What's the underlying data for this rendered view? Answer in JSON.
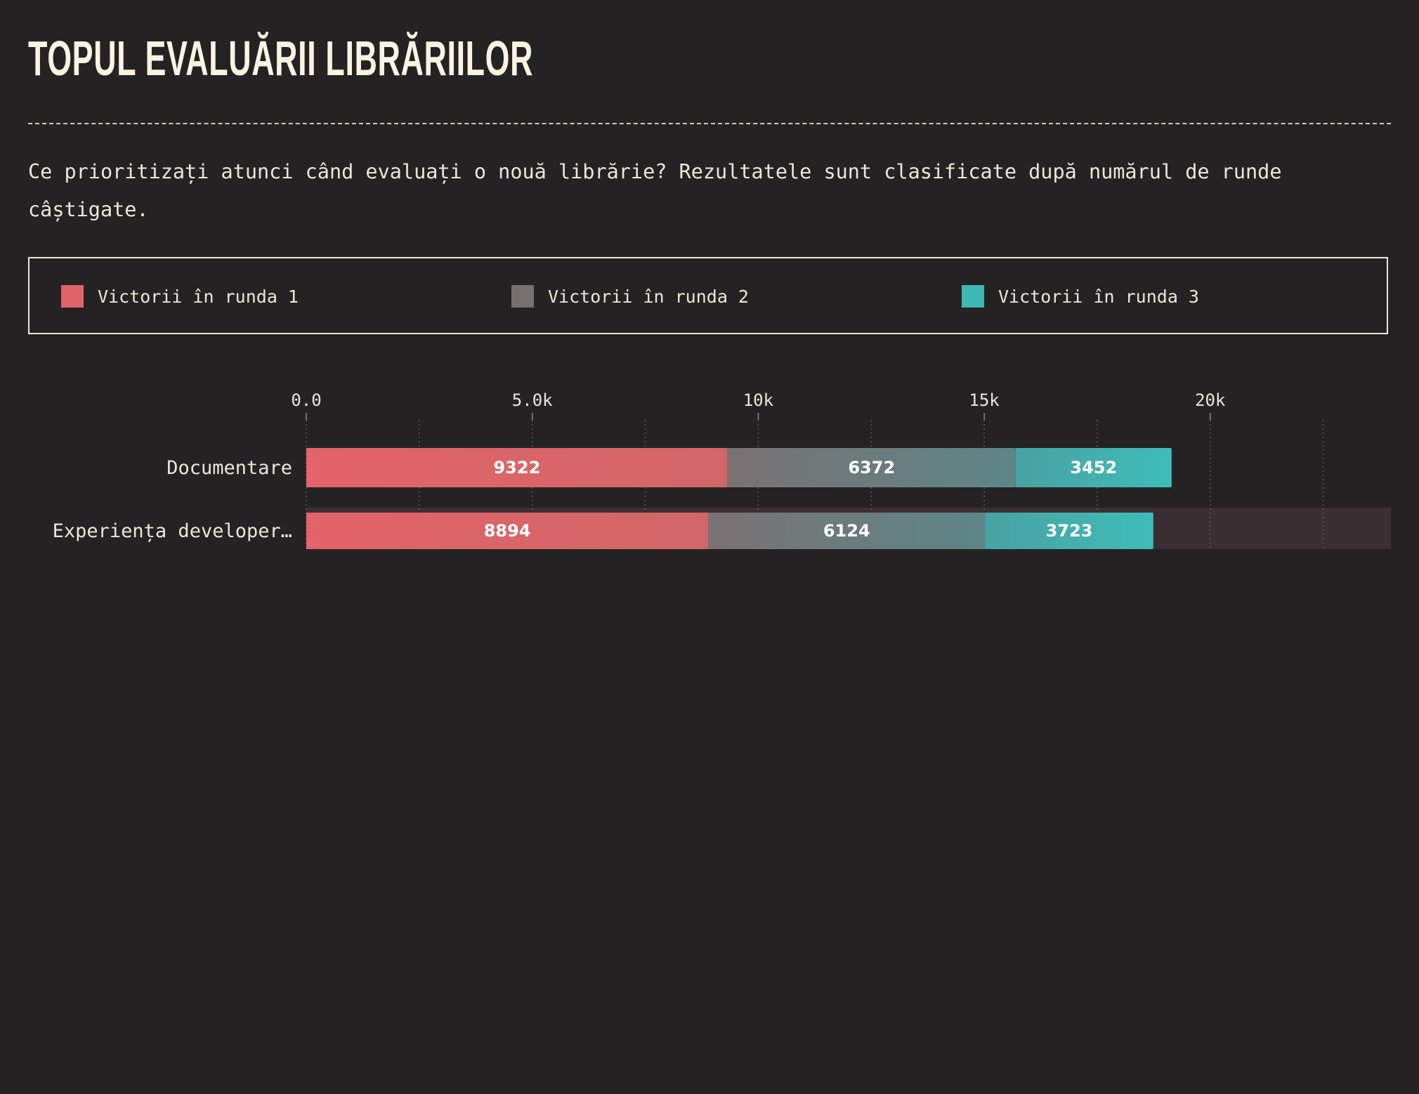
{
  "page": {
    "title": "TOPUL EVALUĂRII LIBRĂRIILOR",
    "subtitle": "Ce prioritizați atunci când evaluați o nouă librărie? Rezultatele sunt clasificate după numărul de runde câștigate."
  },
  "colors": {
    "background": "#252223",
    "round1": "#e0646a",
    "round2": "#76706f",
    "round3": "#3fb7b4",
    "highlight_row": "#3b2e33",
    "text": "#ece6da"
  },
  "legend": [
    {
      "label": "Victorii în runda 1",
      "color": "#e0646a"
    },
    {
      "label": "Victorii în runda 2",
      "color": "#76706f"
    },
    {
      "label": "Victorii în runda 3",
      "color": "#3fb7b4"
    }
  ],
  "chart_data": {
    "type": "bar",
    "orientation": "horizontal",
    "stacked": true,
    "title": "",
    "xlabel": "",
    "ylabel": "",
    "xlim": [
      0,
      24000
    ],
    "x_ticks": [
      0,
      5000,
      10000,
      15000,
      20000
    ],
    "x_tick_labels": [
      "0.0",
      "5.0k",
      "10k",
      "15k",
      "20k"
    ],
    "grid": "vertical dotted",
    "legend_position": "top",
    "categories": [
      "Documentare",
      "Experiența developer…"
    ],
    "series": [
      {
        "name": "Victorii în runda 1",
        "values": [
          9322,
          8894
        ]
      },
      {
        "name": "Victorii în runda 2",
        "values": [
          6372,
          6124
        ]
      },
      {
        "name": "Victorii în runda 3",
        "values": [
          3452,
          3723
        ]
      }
    ],
    "highlighted_category": "Experiența developer…"
  }
}
